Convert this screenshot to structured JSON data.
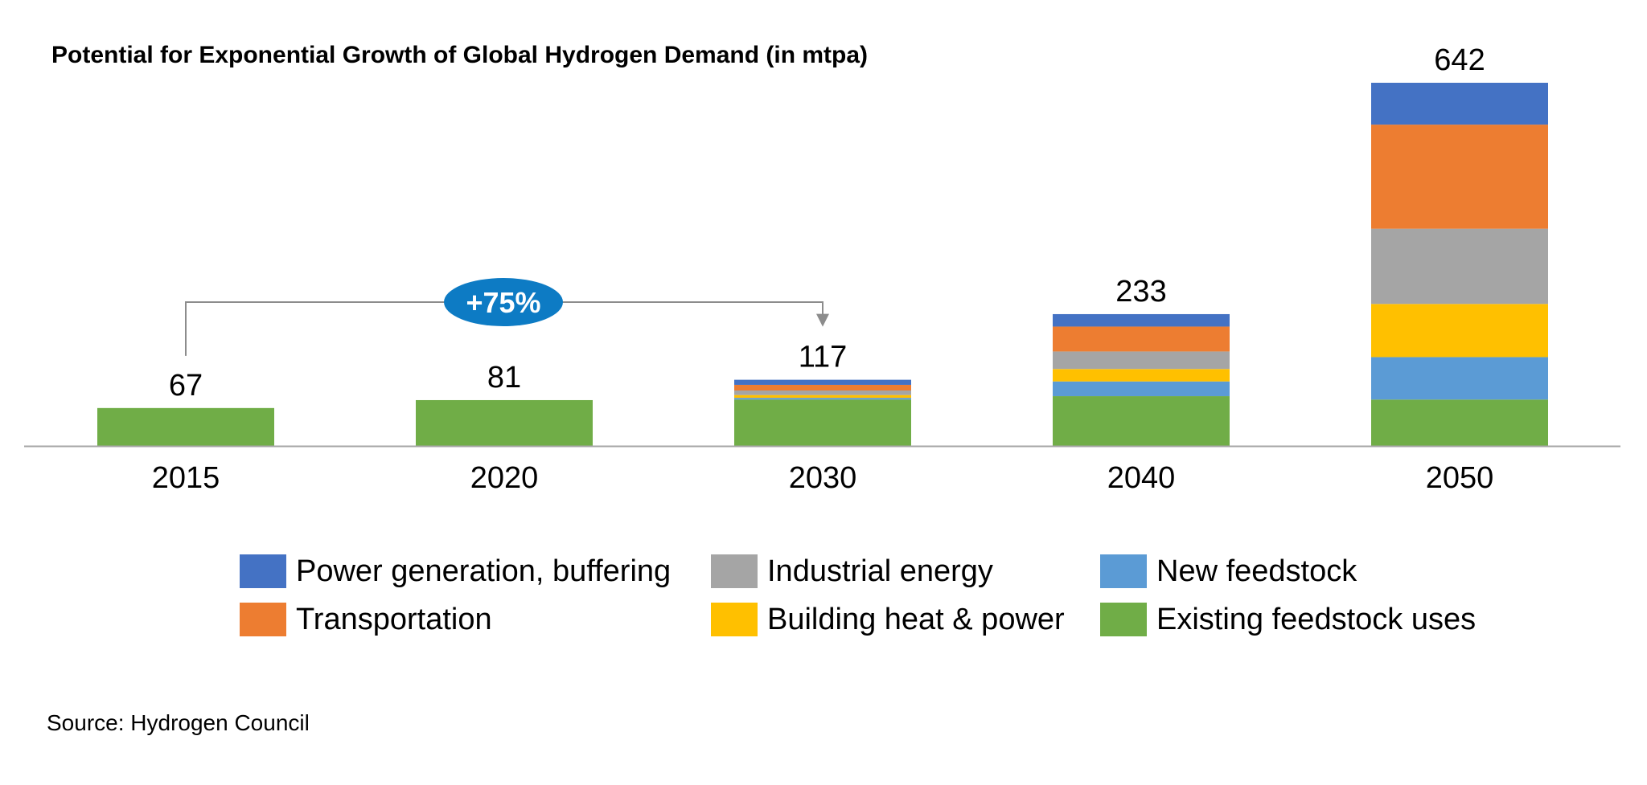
{
  "chart_data": {
    "type": "bar",
    "stacked": true,
    "title": "Potential for Exponential Growth of Global Hydrogen Demand (in mtpa)",
    "categories": [
      "2015",
      "2020",
      "2030",
      "2040",
      "2050"
    ],
    "totals": [
      67,
      81,
      117,
      233,
      642
    ],
    "series": [
      {
        "name": "Existing feedstock uses",
        "color": "#70AD47",
        "values": [
          67,
          81,
          82,
          88,
          82
        ]
      },
      {
        "name": "New feedstock",
        "color": "#5B9BD5",
        "values": [
          0,
          0,
          3,
          26,
          75
        ]
      },
      {
        "name": "Building heat & power",
        "color": "#FFC000",
        "values": [
          0,
          0,
          5,
          22,
          94
        ]
      },
      {
        "name": "Industrial energy",
        "color": "#A5A5A5",
        "values": [
          0,
          0,
          8,
          31,
          133
        ]
      },
      {
        "name": "Transportation",
        "color": "#ED7D31",
        "values": [
          0,
          0,
          10,
          44,
          184
        ]
      },
      {
        "name": "Power generation, buffering",
        "color": "#4472C4",
        "values": [
          0,
          0,
          9,
          22,
          74
        ]
      }
    ],
    "legend_order": [
      "Power generation, buffering",
      "Industrial energy",
      "New feedstock",
      "Transportation",
      "Building heat & power",
      "Existing feedstock uses"
    ],
    "annotation": {
      "text": "+75%",
      "from": "2015",
      "to": "2030",
      "color": "#0D7BC4"
    },
    "ylim": [
      0,
      642
    ],
    "xlabel": "",
    "ylabel": ""
  },
  "source": "Source: Hydrogen Council"
}
